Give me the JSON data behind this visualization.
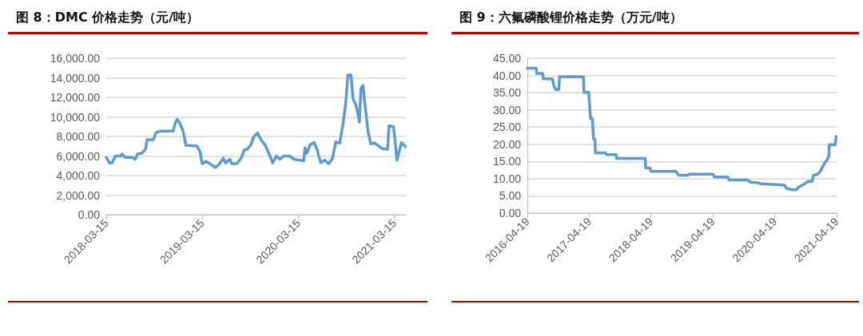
{
  "chart_data": [
    {
      "type": "line",
      "title": "图 8：DMC 价格走势（元/吨）",
      "marker": "none",
      "line_style": "solid",
      "grid": "y",
      "xlim": [
        "2018-03-15",
        "2021-04-28"
      ],
      "xticks": [
        "2018-03-15",
        "2019-03-15",
        "2020-03-15",
        "2021-03-15"
      ],
      "ylim": [
        0,
        16000
      ],
      "yticks": [
        {
          "value": 0,
          "label": "0.00"
        },
        {
          "value": 2000,
          "label": "2,000.00"
        },
        {
          "value": 4000,
          "label": "4,000.00"
        },
        {
          "value": 6000,
          "label": "6,000.00"
        },
        {
          "value": 8000,
          "label": "8,000.00"
        },
        {
          "value": 10000,
          "label": "10,000.00"
        },
        {
          "value": 12000,
          "label": "12,000.00"
        },
        {
          "value": 14000,
          "label": "14,000.00"
        },
        {
          "value": 16000,
          "label": "16,000.00"
        }
      ],
      "series": [
        {
          "color": "#5b9bd5",
          "x": [
            "2018-03-15",
            "2018-03-27",
            "2018-04-06",
            "2018-04-19",
            "2018-05-09",
            "2018-05-14",
            "2018-05-26",
            "2018-06-23",
            "2018-07-03",
            "2018-07-13",
            "2018-07-28",
            "2018-08-12",
            "2018-08-17",
            "2018-09-11",
            "2018-09-19",
            "2018-10-06",
            "2018-11-25",
            "2018-12-02",
            "2018-12-10",
            "2018-12-18",
            "2019-01-02",
            "2019-01-12",
            "2019-02-23",
            "2019-03-07",
            "2019-03-15",
            "2019-03-30",
            "2019-04-16",
            "2019-05-04",
            "2019-05-19",
            "2019-06-03",
            "2019-06-11",
            "2019-06-28",
            "2019-07-05",
            "2019-07-25",
            "2019-08-10",
            "2019-08-22",
            "2019-09-01",
            "2019-09-16",
            "2019-09-26",
            "2019-10-11",
            "2019-10-26",
            "2019-11-10",
            "2019-11-28",
            "2019-12-08",
            "2019-12-22",
            "2020-01-04",
            "2020-01-19",
            "2020-02-10",
            "2020-02-28",
            "2020-04-04",
            "2020-04-09",
            "2020-04-16",
            "2020-04-29",
            "2020-05-14",
            "2020-05-26",
            "2020-06-08",
            "2020-06-23",
            "2020-07-08",
            "2020-07-23",
            "2020-08-04",
            "2020-08-19",
            "2020-09-01",
            "2020-09-11",
            "2020-09-19",
            "2020-10-01",
            "2020-10-09",
            "2020-10-21",
            "2020-11-02",
            "2020-11-08",
            "2020-11-16",
            "2020-11-22",
            "2020-12-05",
            "2020-12-15",
            "2020-12-30",
            "2021-01-26",
            "2021-02-17",
            "2021-02-23",
            "2021-03-12",
            "2021-03-25",
            "2021-04-11",
            "2021-04-26"
          ],
          "values": [
            5860,
            5300,
            5300,
            6000,
            6000,
            6200,
            5860,
            5860,
            5670,
            6220,
            6280,
            6750,
            7670,
            7670,
            8360,
            8560,
            8560,
            9330,
            9750,
            9470,
            8500,
            7110,
            7030,
            6420,
            5220,
            5440,
            5170,
            4830,
            5170,
            5780,
            5300,
            5670,
            5220,
            5220,
            5780,
            6610,
            6690,
            7110,
            7940,
            8360,
            7610,
            7110,
            6000,
            5300,
            6000,
            5670,
            6000,
            6000,
            5670,
            5500,
            6830,
            6280,
            7170,
            7390,
            6560,
            5300,
            5580,
            5220,
            5780,
            7440,
            7330,
            9330,
            11420,
            14280,
            14280,
            11830,
            11140,
            9470,
            12940,
            13220,
            11560,
            8500,
            7250,
            7330,
            6780,
            6690,
            9110,
            9000,
            5580,
            7390,
            6970
          ]
        }
      ]
    },
    {
      "type": "line",
      "title": "图 9：六氟磷酸锂价格走势（万元/吨）",
      "marker": "none",
      "line_style": "solid",
      "grid": "y",
      "xlim": [
        "2016-04-19",
        "2021-04-19"
      ],
      "xticks": [
        "2016-04-19",
        "2017-04-19",
        "2018-04-19",
        "2019-04-19",
        "2020-04-19",
        "2021-04-19"
      ],
      "ylim": [
        0,
        45
      ],
      "yticks": [
        {
          "value": 0,
          "label": "0.00"
        },
        {
          "value": 5,
          "label": "5.00"
        },
        {
          "value": 10,
          "label": "10.00"
        },
        {
          "value": 15,
          "label": "15.00"
        },
        {
          "value": 20,
          "label": "20.00"
        },
        {
          "value": 25,
          "label": "25.00"
        },
        {
          "value": 30,
          "label": "30.00"
        },
        {
          "value": 35,
          "label": "35.00"
        },
        {
          "value": 40,
          "label": "40.00"
        },
        {
          "value": 45,
          "label": "45.00"
        }
      ],
      "series": [
        {
          "color": "#5b9bd5",
          "x": [
            "2016-04-19",
            "2016-06-11",
            "2016-06-12",
            "2016-07-18",
            "2016-07-23",
            "2016-09-14",
            "2016-09-24",
            "2016-10-05",
            "2016-10-21",
            "2016-10-26",
            "2017-03-16",
            "2017-03-19",
            "2017-04-16",
            "2017-04-27",
            "2017-05-07",
            "2017-05-15",
            "2017-05-23",
            "2017-05-26",
            "2017-07-24",
            "2017-08-01",
            "2017-09-25",
            "2017-09-28",
            "2018-03-16",
            "2018-03-18",
            "2018-04-13",
            "2018-04-19",
            "2018-09-13",
            "2018-09-29",
            "2018-11-22",
            "2018-11-30",
            "2019-04-20",
            "2019-04-28",
            "2019-07-16",
            "2019-07-24",
            "2019-11-11",
            "2019-11-27",
            "2020-01-13",
            "2020-01-29",
            "2020-03-09",
            "2020-04-27",
            "2020-06-16",
            "2020-06-26",
            "2020-07-30",
            "2020-08-23",
            "2020-09-08",
            "2020-10-09",
            "2020-10-30",
            "2020-11-25",
            "2020-12-03",
            "2020-12-27",
            "2021-01-11",
            "2021-01-27",
            "2021-02-07",
            "2021-02-23",
            "2021-03-04",
            "2021-03-07",
            "2021-04-11",
            "2021-04-16",
            "2021-04-19"
          ],
          "values": [
            42.1,
            42.1,
            40.6,
            40.6,
            39.0,
            39.0,
            36.7,
            35.9,
            35.9,
            39.6,
            39.6,
            35.1,
            35.1,
            27.5,
            27.5,
            21.5,
            21.5,
            17.5,
            17.5,
            17.0,
            17.0,
            15.9,
            15.9,
            13.1,
            13.1,
            12.1,
            12.1,
            11.0,
            11.0,
            11.3,
            11.3,
            10.5,
            10.5,
            9.6,
            9.6,
            9.0,
            8.8,
            8.5,
            8.4,
            8.3,
            8.1,
            7.2,
            6.8,
            6.8,
            7.6,
            8.4,
            9.2,
            9.2,
            11.0,
            11.3,
            12.1,
            13.5,
            14.5,
            15.5,
            16.6,
            19.9,
            19.9,
            22.3,
            22.3
          ]
        }
      ]
    }
  ]
}
